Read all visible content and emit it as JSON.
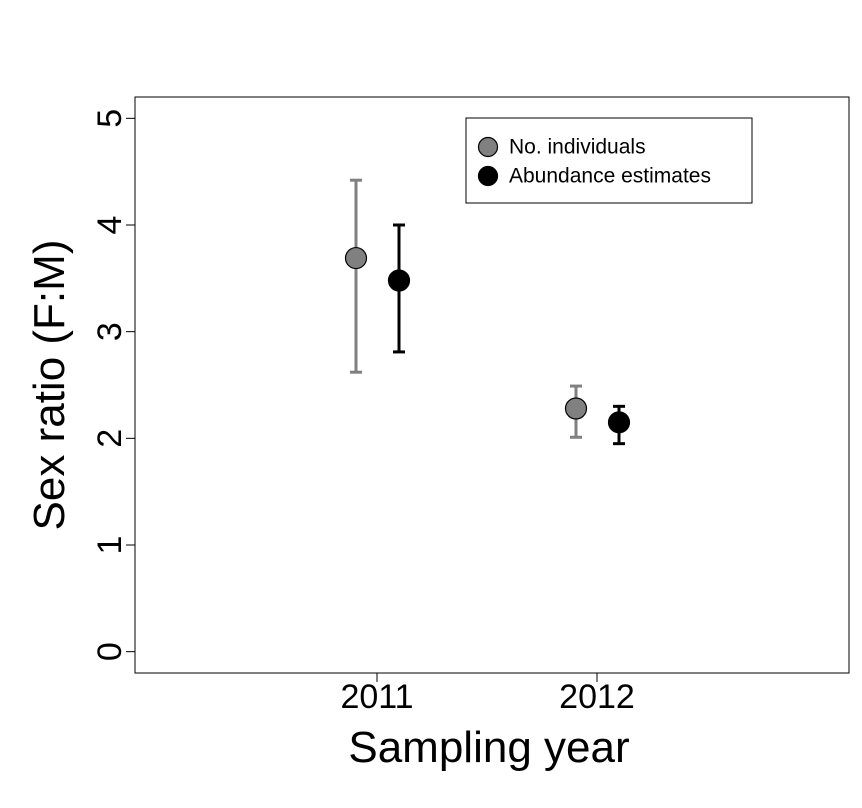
{
  "chart_data": {
    "type": "scatter",
    "title": "",
    "xlabel": "Sampling year",
    "ylabel": "Sex ratio (F:M)",
    "categories": [
      "2011",
      "2012"
    ],
    "yticks": [
      "0",
      "1",
      "2",
      "3",
      "4",
      "5"
    ],
    "ylim": [
      -0.2,
      5.2
    ],
    "grid": false,
    "legend_position": "top-right",
    "series": [
      {
        "name": "No. individuals",
        "color": "#808080",
        "values": [
          3.69,
          2.28
        ],
        "lower": [
          2.62,
          2.01
        ],
        "upper": [
          4.42,
          2.49
        ]
      },
      {
        "name": "Abundance estimates",
        "color": "#000000",
        "values": [
          3.48,
          2.15
        ],
        "lower": [
          2.81,
          1.95
        ],
        "upper": [
          4.0,
          2.3
        ]
      }
    ]
  }
}
